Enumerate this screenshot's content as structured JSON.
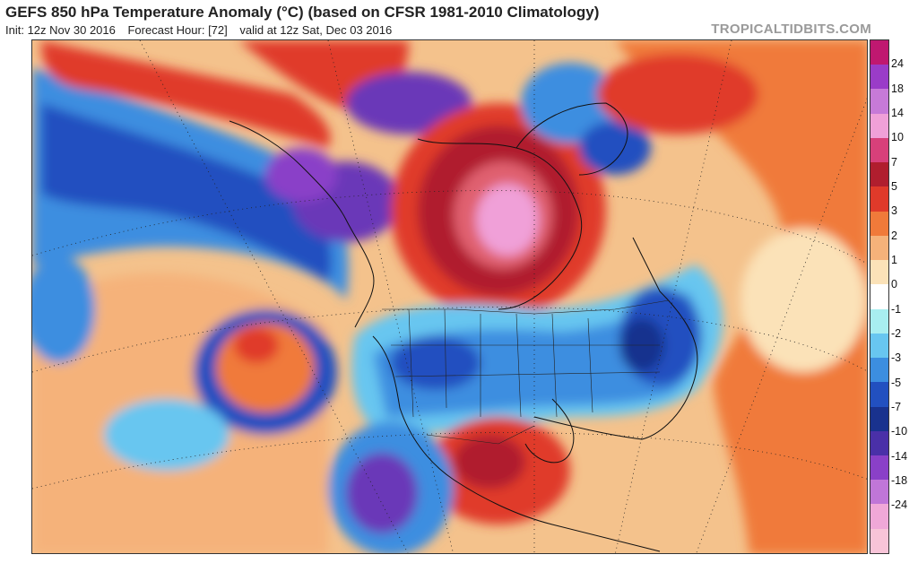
{
  "header": {
    "title": "GEFS 850 hPa Temperature Anomaly (°C) (based on CFSR 1981-2010 Climatology)",
    "init": "Init: 12z Nov 30 2016",
    "forecast_hour": "Forecast Hour: [72]",
    "valid": "valid at 12z Sat, Dec 03 2016",
    "credit": "TROPICALTIDBITS.COM"
  },
  "colorbar": {
    "labels": [
      "24",
      "18",
      "14",
      "10",
      "7",
      "5",
      "3",
      "2",
      "1",
      "0",
      "-1",
      "-2",
      "-3",
      "-5",
      "-7",
      "-10",
      "-14",
      "-18",
      "-24"
    ],
    "colors": [
      "#c01870",
      "#9a3cc8",
      "#c77ad8",
      "#f0a0d8",
      "#d8407a",
      "#b01e2e",
      "#e03a2a",
      "#f07a3a",
      "#f5b27a",
      "#fbe2b8",
      "#ffffff",
      "#a8eef0",
      "#68c6f0",
      "#3c8ee0",
      "#2250c0",
      "#19328e",
      "#4a30a8",
      "#8a40c8",
      "#c076d8",
      "#f0a8d8",
      "#f8c4d8"
    ]
  },
  "map": {
    "region": "North America",
    "colors": {
      "ocean_base": "#f4c28c",
      "warm_strong": "#e03a2a",
      "warm_mid": "#f07a3a",
      "warm_light": "#f5b27a",
      "neutral": "#fbe2b8",
      "cold_light": "#68c6f0",
      "cold_mid": "#3c8ee0",
      "cold_strong": "#2250c0",
      "cold_deep": "#19328e",
      "cold_extreme": "#6a38b8",
      "hot_extreme": "#f0a0d8",
      "hot_deep": "#b01e2e",
      "outline": "#111111"
    }
  }
}
